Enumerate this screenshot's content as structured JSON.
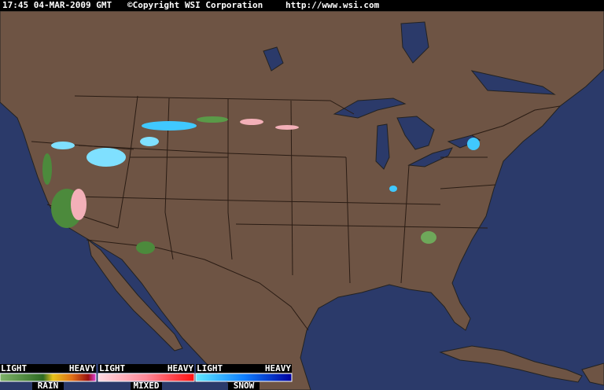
{
  "header": {
    "time": "17:45 04-MAR-2009 GMT",
    "copyright": "©Copyright WSI Corporation",
    "url": "http://www.wsi.com"
  },
  "legend": [
    {
      "light": "LIGHT",
      "heavy": "HEAVY",
      "label": "RAIN"
    },
    {
      "light": "LIGHT",
      "heavy": "HEAVY",
      "label": "MIXED"
    },
    {
      "light": "LIGHT",
      "heavy": "HEAVY",
      "label": "SNOW"
    }
  ]
}
